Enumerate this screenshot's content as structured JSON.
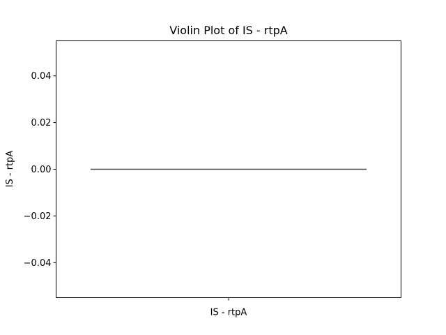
{
  "chart_data": {
    "type": "violin",
    "title": "Violin Plot of IS - rtpA",
    "xlabel": "",
    "ylabel": "IS - rtpA",
    "categories": [
      "IS - rtpA"
    ],
    "series": [
      {
        "values": [
          0.0
        ]
      }
    ],
    "ylim": [
      -0.055,
      0.055
    ],
    "yticks": [
      -0.04,
      -0.02,
      0.0,
      0.02,
      0.04
    ],
    "ytick_labels": [
      "−0.04",
      "−0.02",
      "0.00",
      "0.02",
      "0.04"
    ],
    "grid": false,
    "legend": "none",
    "colors": {
      "line": "#444444",
      "axes": "#000000"
    }
  }
}
